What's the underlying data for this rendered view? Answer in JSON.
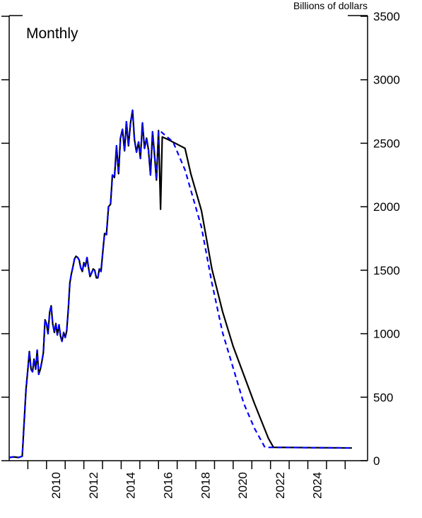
{
  "chart_data": {
    "type": "line",
    "y_label": "Billions of dollars",
    "annotation": "Monthly",
    "xlim": [
      2008,
      2027.2
    ],
    "ylim": [
      0,
      3500
    ],
    "yticks": [
      0,
      500,
      1000,
      1500,
      2000,
      2500,
      3000,
      3500
    ],
    "xticks": [
      {
        "value": 2010.5,
        "label": "2010"
      },
      {
        "value": 2012.5,
        "label": "2012"
      },
      {
        "value": 2014.5,
        "label": "2014"
      },
      {
        "value": 2016.5,
        "label": "2016"
      },
      {
        "value": 2018.5,
        "label": "2018"
      },
      {
        "value": 2020.5,
        "label": "2020"
      },
      {
        "value": 2022.5,
        "label": "2022"
      },
      {
        "value": 2024.5,
        "label": "2024"
      }
    ],
    "xminor_ticks": [
      2009,
      2010,
      2011,
      2012,
      2013,
      2014,
      2015,
      2016,
      2017,
      2018,
      2019,
      2020,
      2021,
      2022,
      2023,
      2024,
      2025,
      2026
    ],
    "series": [
      {
        "color": "#000000",
        "line_style": "solid",
        "x": [
          2008.0,
          2008.25,
          2008.5,
          2008.7,
          2008.8,
          2008.9,
          2009.0,
          2009.08,
          2009.17,
          2009.25,
          2009.33,
          2009.42,
          2009.5,
          2009.58,
          2009.67,
          2009.75,
          2009.83,
          2009.92,
          2010.0,
          2010.08,
          2010.17,
          2010.25,
          2010.33,
          2010.42,
          2010.5,
          2010.58,
          2010.67,
          2010.75,
          2010.83,
          2010.92,
          2011.0,
          2011.08,
          2011.17,
          2011.25,
          2011.33,
          2011.42,
          2011.5,
          2011.58,
          2011.67,
          2011.75,
          2011.83,
          2011.92,
          2012.0,
          2012.08,
          2012.17,
          2012.25,
          2012.33,
          2012.42,
          2012.5,
          2012.58,
          2012.67,
          2012.75,
          2012.83,
          2012.92,
          2013.0,
          2013.11,
          2013.21,
          2013.32,
          2013.43,
          2013.53,
          2013.64,
          2013.75,
          2013.86,
          2013.96,
          2014.07,
          2014.18,
          2014.28,
          2014.39,
          2014.5,
          2014.61,
          2014.71,
          2014.82,
          2014.93,
          2015.03,
          2015.14,
          2015.25,
          2015.36,
          2015.46,
          2015.57,
          2015.68,
          2015.78,
          2015.89,
          2016.0,
          2016.11,
          2016.2,
          2016.5,
          2016.9,
          2017.42,
          2017.73,
          2018.3,
          2018.86,
          2019.43,
          2020.0,
          2020.57,
          2021.14,
          2021.59,
          2021.89,
          2022.16,
          2026.36
        ],
        "values": [
          25,
          30,
          25,
          35,
          300,
          560,
          720,
          860,
          720,
          700,
          800,
          720,
          870,
          680,
          720,
          780,
          850,
          1110,
          1080,
          1000,
          1170,
          1220,
          1080,
          1010,
          1080,
          990,
          1070,
          980,
          940,
          1010,
          970,
          1020,
          1200,
          1400,
          1470,
          1530,
          1590,
          1610,
          1600,
          1580,
          1520,
          1490,
          1560,
          1530,
          1600,
          1520,
          1450,
          1480,
          1510,
          1500,
          1440,
          1440,
          1510,
          1490,
          1620,
          1790,
          1780,
          2000,
          2020,
          2250,
          2230,
          2480,
          2260,
          2540,
          2610,
          2440,
          2670,
          2480,
          2660,
          2760,
          2530,
          2430,
          2510,
          2380,
          2660,
          2460,
          2540,
          2450,
          2250,
          2590,
          2420,
          2210,
          2600,
          1980,
          2550,
          2530,
          2500,
          2460,
          2260,
          1970,
          1510,
          1175,
          900,
          675,
          450,
          285,
          175,
          105,
          100
        ]
      },
      {
        "color": "#0000ff",
        "line_style": "dashed",
        "x": [
          2008.0,
          2008.25,
          2008.5,
          2008.7,
          2008.8,
          2008.9,
          2009.0,
          2009.08,
          2009.17,
          2009.25,
          2009.33,
          2009.42,
          2009.5,
          2009.58,
          2009.67,
          2009.75,
          2009.83,
          2009.92,
          2010.0,
          2010.08,
          2010.17,
          2010.25,
          2010.33,
          2010.42,
          2010.5,
          2010.58,
          2010.67,
          2010.75,
          2010.83,
          2010.92,
          2011.0,
          2011.08,
          2011.17,
          2011.25,
          2011.33,
          2011.42,
          2011.5,
          2011.58,
          2011.67,
          2011.75,
          2011.83,
          2011.92,
          2012.0,
          2012.08,
          2012.17,
          2012.25,
          2012.33,
          2012.42,
          2012.5,
          2012.58,
          2012.67,
          2012.75,
          2012.83,
          2012.92,
          2013.0,
          2013.11,
          2013.21,
          2013.32,
          2013.43,
          2013.53,
          2013.64,
          2013.75,
          2013.86,
          2013.96,
          2014.07,
          2014.18,
          2014.28,
          2014.39,
          2014.5,
          2014.61,
          2014.71,
          2014.82,
          2014.93,
          2015.03,
          2015.14,
          2015.25,
          2015.36,
          2015.46,
          2015.57,
          2015.68,
          2015.78,
          2015.89,
          2016.0,
          2016.14,
          2016.78,
          2017.42,
          2018.3,
          2018.86,
          2019.43,
          2020.0,
          2020.57,
          2021.14,
          2021.7,
          2026.36
        ],
        "values": [
          25,
          30,
          25,
          35,
          300,
          560,
          720,
          860,
          720,
          700,
          800,
          720,
          870,
          680,
          720,
          780,
          850,
          1110,
          1080,
          1000,
          1170,
          1220,
          1080,
          1010,
          1080,
          990,
          1070,
          980,
          940,
          1010,
          970,
          1020,
          1200,
          1400,
          1470,
          1530,
          1590,
          1610,
          1600,
          1580,
          1520,
          1490,
          1560,
          1530,
          1600,
          1520,
          1450,
          1480,
          1510,
          1500,
          1440,
          1440,
          1510,
          1490,
          1620,
          1790,
          1780,
          2000,
          2020,
          2250,
          2230,
          2480,
          2260,
          2540,
          2610,
          2440,
          2670,
          2480,
          2660,
          2760,
          2530,
          2430,
          2510,
          2380,
          2660,
          2460,
          2540,
          2450,
          2250,
          2590,
          2420,
          2210,
          2600,
          2590,
          2510,
          2290,
          1840,
          1400,
          1010,
          730,
          450,
          255,
          105,
          100
        ]
      }
    ]
  }
}
